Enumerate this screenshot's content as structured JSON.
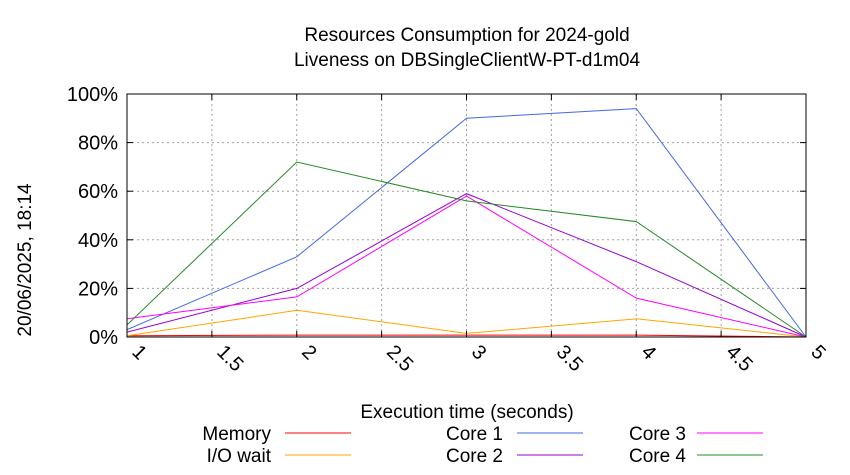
{
  "chart_data": {
    "type": "line",
    "title": [
      "Resources Consumption for 2024-gold",
      "Liveness on DBSingleClientW-PT-d1m04"
    ],
    "xlabel": "Execution time (seconds)",
    "ylabel": "",
    "side_label": "20/06/2025, 18:14",
    "xlim": [
      1,
      5
    ],
    "ylim": [
      0,
      100
    ],
    "x_ticks": [
      "1",
      "1.5",
      "2",
      "2.5",
      "3",
      "3.5",
      "4",
      "4.5",
      "5"
    ],
    "y_ticks": [
      "0%",
      "20%",
      "40%",
      "60%",
      "80%",
      "100%"
    ],
    "grid": true,
    "legend_position": "bottom",
    "x": [
      1,
      2,
      3,
      4,
      5
    ],
    "series": [
      {
        "name": "Memory",
        "color": "#ff0000",
        "values": [
          0.5,
          0.8,
          0.8,
          0.8,
          0
        ]
      },
      {
        "name": "I/O wait",
        "color": "#ffa500",
        "values": [
          0.5,
          11,
          1.5,
          7.5,
          0
        ]
      },
      {
        "name": "Core 1",
        "color": "#4169e1",
        "values": [
          3,
          33,
          90,
          94,
          0
        ]
      },
      {
        "name": "Core 2",
        "color": "#9400d3",
        "values": [
          2,
          20,
          59,
          31,
          0
        ]
      },
      {
        "name": "Core 3",
        "color": "#ff00ff",
        "values": [
          7.5,
          16.5,
          58,
          16,
          0
        ]
      },
      {
        "name": "Core 4",
        "color": "#228b22",
        "values": [
          5,
          72,
          56,
          47.5,
          0
        ]
      }
    ]
  }
}
